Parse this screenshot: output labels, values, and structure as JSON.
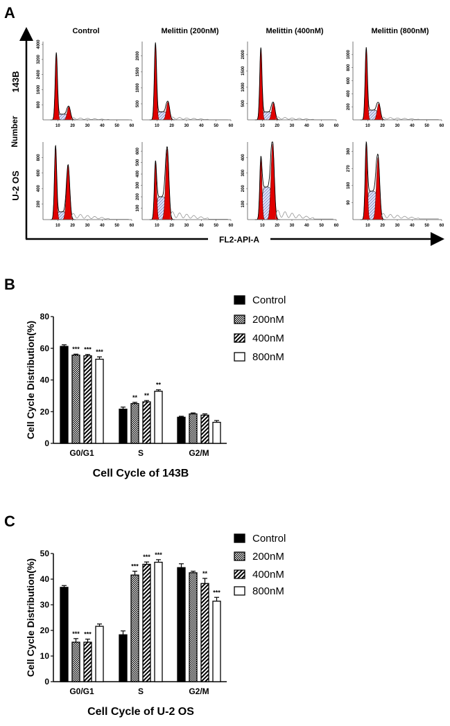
{
  "panel_a": {
    "label": "A",
    "row_labels": [
      "143B",
      "U-2 OS"
    ],
    "y_axis_label": "Number",
    "x_axis_label": "FL2-API-A",
    "column_titles": [
      "Control",
      "Melittin (200nM)",
      "Melittin (400nM)",
      "Melittin (800nM)"
    ],
    "colors": {
      "g1_g2_fill": "#e00000",
      "s_phase_fill": "#c8cdf0",
      "outline": "#000000",
      "debris": "#888888"
    }
  },
  "chart_data": [
    {
      "type": "histogram",
      "panel": "A",
      "x_range": [
        0,
        60
      ],
      "x_ticks": [
        10,
        20,
        30,
        40,
        50,
        60
      ],
      "plots": [
        {
          "row": "143B",
          "title": "Control",
          "y_ticks": [
            800,
            1600,
            2400,
            3200,
            4000
          ],
          "y_max": 4150,
          "g1_pos": 9,
          "g1_peak": 3550,
          "g2_pos": 17.5,
          "g2_peak": 700,
          "s_level": 300,
          "debris": 120
        },
        {
          "row": "143B",
          "title": "Melittin (200nM)",
          "y_ticks": [
            500,
            1000,
            1500,
            2000
          ],
          "y_max": 2450,
          "g1_pos": 9,
          "g1_peak": 2400,
          "g2_pos": 17.5,
          "g2_peak": 560,
          "s_level": 250,
          "debris": 90
        },
        {
          "row": "143B",
          "title": "Melittin (400nM)",
          "y_ticks": [
            500,
            1000,
            1500,
            2000
          ],
          "y_max": 2400,
          "g1_pos": 9,
          "g1_peak": 2200,
          "g2_pos": 17.5,
          "g2_peak": 520,
          "s_level": 240,
          "debris": 90
        },
        {
          "row": "143B",
          "title": "Melittin (800nM)",
          "y_ticks": [
            200,
            400,
            600,
            800,
            1000
          ],
          "y_max": 1200,
          "g1_pos": 9,
          "g1_peak": 1100,
          "g2_pos": 17.5,
          "g2_peak": 250,
          "s_level": 150,
          "debris": 40
        },
        {
          "row": "U-2 OS",
          "title": "Control",
          "y_ticks": [
            200,
            400,
            600,
            800
          ],
          "y_max": 1000,
          "g1_pos": 8.5,
          "g1_peak": 950,
          "g2_pos": 17,
          "g2_peak": 700,
          "s_level": 100,
          "debris": 80
        },
        {
          "row": "U-2 OS",
          "title": "Melittin (200nM)",
          "y_ticks": [
            100,
            200,
            300,
            400,
            500,
            600
          ],
          "y_max": 680,
          "g1_pos": 9,
          "g1_peak": 500,
          "g2_pos": 17,
          "g2_peak": 620,
          "s_level": 200,
          "debris": 70
        },
        {
          "row": "U-2 OS",
          "title": "Melittin (400nM)",
          "y_ticks": [
            100,
            200,
            300,
            400
          ],
          "y_max": 500,
          "g1_pos": 9,
          "g1_peak": 390,
          "g2_pos": 17,
          "g2_peak": 490,
          "s_level": 210,
          "debris": 60
        },
        {
          "row": "U-2 OS",
          "title": "Melittin (800nM)",
          "y_ticks": [
            90,
            180,
            270,
            360
          ],
          "y_max": 410,
          "g1_pos": 9,
          "g1_peak": 400,
          "g2_pos": 17,
          "g2_peak": 330,
          "s_level": 150,
          "debris": 30
        }
      ]
    },
    {
      "type": "bar",
      "panel": "B",
      "label": "B",
      "title": "Cell Cycle of 143B",
      "ylabel": "Cell Cycle Distribution(%)",
      "ylim": [
        0,
        80
      ],
      "y_ticks": [
        0,
        20,
        40,
        60,
        80
      ],
      "categories": [
        "G0/G1",
        "S",
        "G2/M"
      ],
      "legend": "right",
      "series": [
        {
          "name": "Control",
          "pattern": "solid",
          "values": [
            61.2,
            21.6,
            16.5
          ],
          "errors": [
            1.0,
            1.3,
            0.6
          ],
          "significance": [
            "",
            "",
            ""
          ]
        },
        {
          "name": "200nM",
          "pattern": "checker",
          "values": [
            55.7,
            25.1,
            18.6
          ],
          "errors": [
            0.6,
            0.8,
            0.6
          ],
          "significance": [
            "***",
            "**",
            ""
          ]
        },
        {
          "name": "400nM",
          "pattern": "stripes",
          "values": [
            55.3,
            26.2,
            17.8
          ],
          "errors": [
            0.8,
            0.8,
            0.8
          ],
          "significance": [
            "***",
            "**",
            ""
          ]
        },
        {
          "name": "800nM",
          "pattern": "white",
          "values": [
            53.1,
            32.9,
            13.3
          ],
          "errors": [
            1.5,
            0.9,
            1.1
          ],
          "significance": [
            "***",
            "**",
            ""
          ]
        }
      ]
    },
    {
      "type": "bar",
      "panel": "C",
      "label": "C",
      "title": "Cell Cycle of U-2 OS",
      "ylabel": "Cell Cycle Distribution(%)",
      "ylim": [
        0,
        50
      ],
      "y_ticks": [
        0,
        10,
        20,
        30,
        40,
        50
      ],
      "categories": [
        "G0/G1",
        "S",
        "G2/M"
      ],
      "legend": "right",
      "series": [
        {
          "name": "Control",
          "pattern": "solid",
          "values": [
            36.8,
            18.3,
            44.5
          ],
          "errors": [
            0.7,
            1.5,
            1.5
          ],
          "significance": [
            "",
            "",
            ""
          ]
        },
        {
          "name": "200nM",
          "pattern": "checker",
          "values": [
            15.4,
            41.6,
            42.5
          ],
          "errors": [
            1.4,
            1.5,
            0.6
          ],
          "significance": [
            "***",
            "***",
            ""
          ]
        },
        {
          "name": "400nM",
          "pattern": "stripes",
          "values": [
            15.4,
            45.8,
            38.3
          ],
          "errors": [
            1.2,
            0.9,
            2.0
          ],
          "significance": [
            "***",
            "***",
            "**"
          ]
        },
        {
          "name": "800nM",
          "pattern": "white",
          "values": [
            21.6,
            46.6,
            31.4
          ],
          "errors": [
            0.9,
            1.0,
            1.5
          ],
          "significance": [
            "",
            "***",
            "***"
          ]
        }
      ]
    }
  ]
}
